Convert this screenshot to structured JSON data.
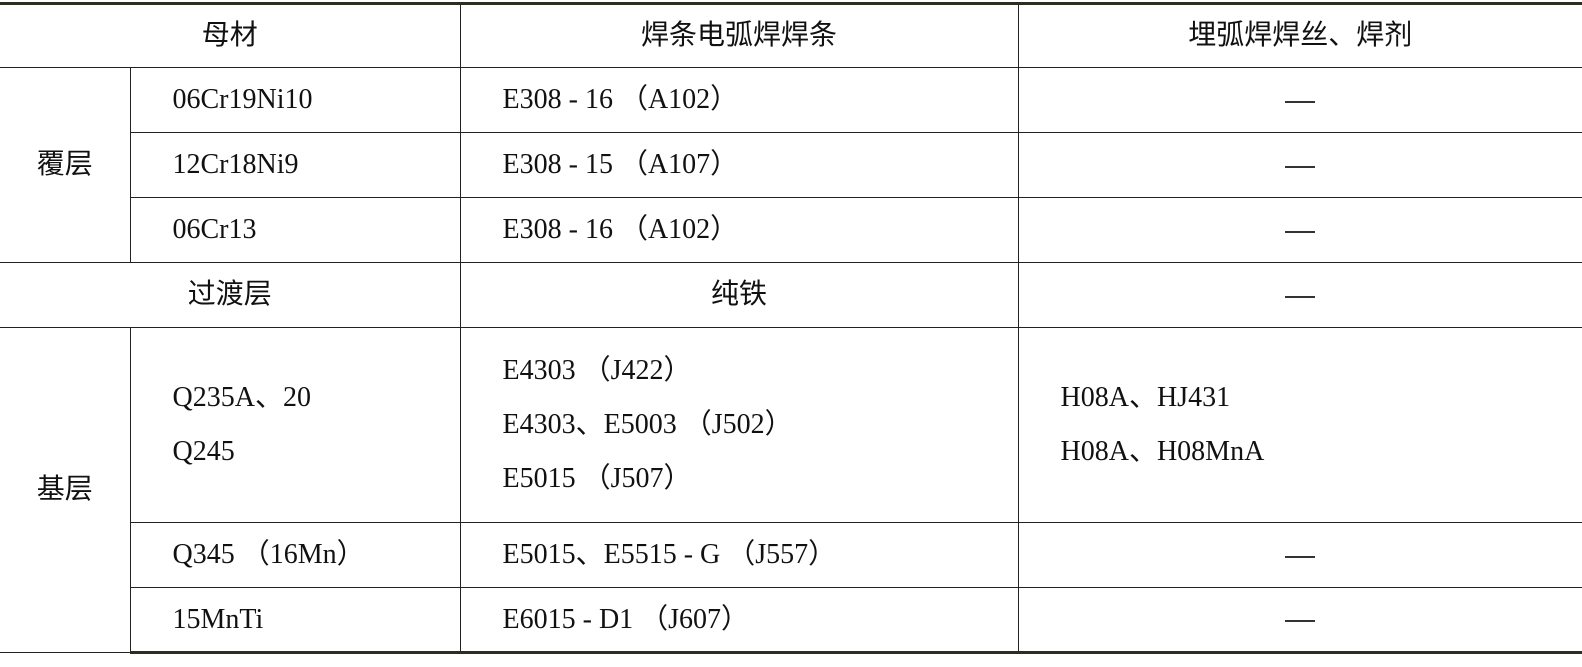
{
  "headers": [
    "母材",
    "焊条电弧焊焊条",
    "埋弧焊焊丝、焊剂"
  ],
  "dash_icon": "em-dash",
  "groups": {
    "cladding": {
      "label": "覆层",
      "rows": [
        {
          "material": "06Cr19Ni10",
          "electrode": "E308 - 16 （A102）",
          "saw": "—"
        },
        {
          "material": "12Cr18Ni9",
          "electrode": "E308 - 15 （A107）",
          "saw": "—"
        },
        {
          "material": "06Cr13",
          "electrode": "E308 - 16 （A102）",
          "saw": "—"
        }
      ]
    },
    "transition": {
      "label": "过渡层",
      "electrode": "纯铁",
      "saw": "—"
    },
    "base": {
      "label": "基层",
      "rows": [
        {
          "material": [
            "Q235A、20",
            "Q245"
          ],
          "electrode": [
            "E4303 （J422）",
            "E4303、E5003 （J502）",
            "E5015 （J507）"
          ],
          "saw": [
            "H08A、HJ431",
            "H08A、H08MnA"
          ]
        },
        {
          "material": "Q345 （16Mn）",
          "electrode": "E5015、E5515 - G （J557）",
          "saw": "—"
        },
        {
          "material": "15MnTi",
          "electrode": "E6015 - D1 （J607）",
          "saw": "—"
        }
      ]
    }
  }
}
